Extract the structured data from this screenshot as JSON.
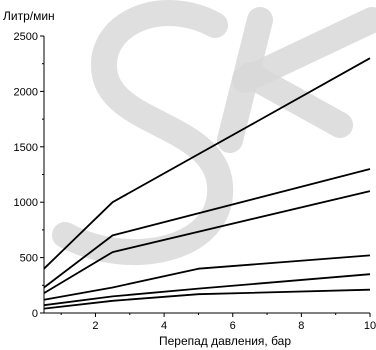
{
  "watermark": {
    "text": "SK",
    "color": "#d9d9d9"
  },
  "chart_data": {
    "type": "line",
    "ylabel": "Литр/мин",
    "xlabel": "Перепад давления, бар",
    "xlim": [
      0.5,
      10
    ],
    "ylim": [
      0,
      2500
    ],
    "x_ticks": [
      2,
      4,
      6,
      8,
      10
    ],
    "y_ticks": [
      0,
      500,
      1000,
      1500,
      2000,
      2500
    ],
    "grid": false,
    "line_color": "#000000",
    "series": [
      {
        "x": [
          0.5,
          2.5,
          10
        ],
        "values": [
          400,
          1000,
          2300
        ]
      },
      {
        "x": [
          0.5,
          2.5,
          10
        ],
        "values": [
          230,
          700,
          1300
        ]
      },
      {
        "x": [
          0.5,
          2.5,
          10
        ],
        "values": [
          180,
          550,
          1100
        ]
      },
      {
        "x": [
          0.5,
          2.5,
          5,
          10
        ],
        "values": [
          120,
          230,
          400,
          520
        ]
      },
      {
        "x": [
          0.5,
          2.5,
          5,
          10
        ],
        "values": [
          70,
          150,
          220,
          350
        ]
      },
      {
        "x": [
          0.5,
          2.5,
          5,
          10
        ],
        "values": [
          40,
          110,
          170,
          210
        ]
      }
    ]
  }
}
